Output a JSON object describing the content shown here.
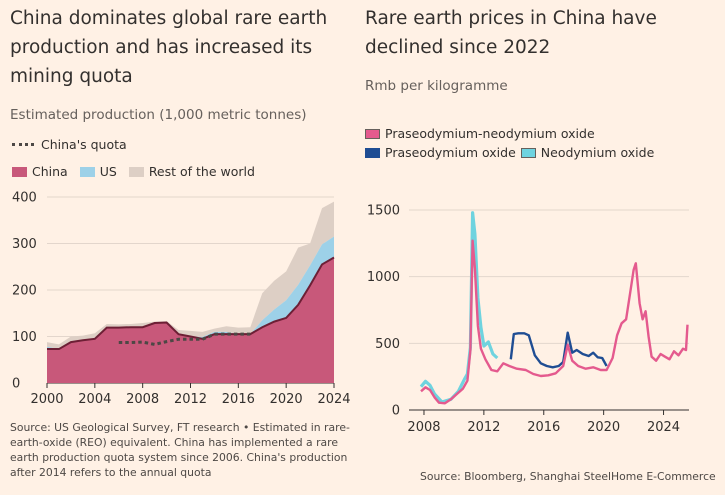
{
  "colors": {
    "background": "#fff1e5",
    "china": "#c8587a",
    "china_line": "#6d1f35",
    "us": "#9dd1e8",
    "rest": "#ddcfc5",
    "quota": "#4d4845",
    "prndo": "#e45a8e",
    "pro": "#1f4d93",
    "ndo": "#6fd3df"
  },
  "left": {
    "title_lines": [
      "China dominates global rare earth",
      "production and has increased its",
      "mining quota"
    ],
    "subtitle": "Estimated production (1,000 metric tonnes)",
    "legend": {
      "quota": "China's quota",
      "china": "China",
      "us": "US",
      "rest": "Rest of the world"
    },
    "source_lines": [
      "Source: US Geological Survey, FT research • Estimated in rare-",
      "earth-oxide (REO) equivalent. China has implemented a rare",
      "earth production quota system since 2006. China's production",
      "after 2014 refers to the annual quota"
    ]
  },
  "right": {
    "title_lines": [
      "Rare earth prices in China have",
      "declined since 2022"
    ],
    "subtitle": "Rmb per kilogramme",
    "legend": {
      "prndo": "Praseodymium-neodymium oxide",
      "pro": "Praseodymium oxide",
      "ndo": "Neodymium oxide"
    },
    "source": "Source: Bloomberg, Shanghai SteelHome E-Commerce"
  },
  "chart_data": [
    {
      "type": "area",
      "stacked": true,
      "title": "Estimated production (1,000 metric tonnes)",
      "xlim": [
        2000,
        2024
      ],
      "ylim": [
        0,
        400
      ],
      "xticks": [
        2000,
        2004,
        2008,
        2012,
        2016,
        2020,
        2024
      ],
      "yticks": [
        0,
        100,
        200,
        300,
        400
      ],
      "x": [
        2000,
        2001,
        2002,
        2003,
        2004,
        2005,
        2006,
        2007,
        2008,
        2009,
        2010,
        2011,
        2012,
        2013,
        2014,
        2015,
        2016,
        2017,
        2018,
        2019,
        2020,
        2021,
        2022,
        2023,
        2024
      ],
      "series": [
        {
          "name": "China",
          "values": [
            73,
            73,
            88,
            92,
            95,
            119,
            119,
            120,
            120,
            129,
            130,
            105,
            100,
            95,
            105,
            105,
            105,
            105,
            120,
            132,
            140,
            168,
            210,
            255,
            270
          ]
        },
        {
          "name": "US",
          "values": [
            5,
            0,
            0,
            0,
            0,
            0,
            0,
            0,
            0,
            0,
            0,
            0,
            0,
            4,
            5,
            5,
            0,
            0,
            15,
            26,
            38,
            43,
            43,
            43,
            45
          ]
        },
        {
          "name": "Rest of the world",
          "values": [
            10,
            10,
            12,
            10,
            12,
            8,
            7,
            7,
            9,
            3,
            3,
            9,
            12,
            11,
            7,
            12,
            14,
            15,
            58,
            62,
            62,
            80,
            47,
            78,
            75
          ]
        }
      ],
      "quota": {
        "name": "China's quota",
        "x": [
          2006,
          2007,
          2008,
          2009,
          2010,
          2011,
          2012,
          2013,
          2014,
          2015,
          2016,
          2017
        ],
        "values": [
          87,
          87,
          88,
          83,
          89,
          94,
          94,
          94,
          105,
          105,
          105,
          105
        ]
      }
    },
    {
      "type": "line",
      "title": "Rmb per kilogramme",
      "xlim": [
        2007.2,
        2025.7
      ],
      "ylim": [
        0,
        1500
      ],
      "xticks": [
        2008,
        2012,
        2016,
        2020,
        2024
      ],
      "yticks": [
        0,
        500,
        1000,
        1500
      ],
      "series": [
        {
          "name": "Neodymium oxide",
          "x": [
            2007.8,
            2008.1,
            2008.4,
            2008.7,
            2009.2,
            2009.8,
            2010.3,
            2010.7,
            2010.9,
            2011.1,
            2011.25,
            2011.4,
            2011.6,
            2011.8,
            2012.0,
            2012.3,
            2012.6,
            2012.9
          ],
          "values": [
            175,
            215,
            185,
            120,
            60,
            80,
            140,
            230,
            270,
            470,
            1480,
            1320,
            840,
            620,
            480,
            510,
            420,
            390
          ]
        },
        {
          "name": "Praseodymium oxide",
          "x": [
            2013.8,
            2014.0,
            2014.3,
            2014.7,
            2015.0,
            2015.4,
            2015.8,
            2016.2,
            2016.6,
            2017.0,
            2017.3,
            2017.6,
            2017.9,
            2018.2,
            2018.6,
            2019.0,
            2019.3,
            2019.6,
            2019.9,
            2020.2
          ],
          "values": [
            380,
            570,
            575,
            575,
            560,
            410,
            350,
            330,
            320,
            330,
            360,
            580,
            430,
            450,
            420,
            405,
            430,
            395,
            390,
            330
          ]
        },
        {
          "name": "Praseodymium-neodymium oxide",
          "x": [
            2007.8,
            2008.1,
            2008.4,
            2008.7,
            2009.0,
            2009.4,
            2009.8,
            2010.2,
            2010.6,
            2010.9,
            2011.1,
            2011.25,
            2011.4,
            2011.6,
            2011.8,
            2012.1,
            2012.5,
            2012.9,
            2013.3,
            2013.7,
            2014.2,
            2014.8,
            2015.3,
            2015.8,
            2016.3,
            2016.8,
            2017.3,
            2017.6,
            2017.9,
            2018.3,
            2018.8,
            2019.3,
            2019.8,
            2020.2,
            2020.6,
            2020.9,
            2021.2,
            2021.5,
            2021.8,
            2022.0,
            2022.15,
            2022.4,
            2022.6,
            2022.8,
            2023.0,
            2023.2,
            2023.5,
            2023.8,
            2024.1,
            2024.4,
            2024.7,
            2025.0,
            2025.3,
            2025.5,
            2025.6
          ],
          "values": [
            140,
            170,
            150,
            95,
            55,
            50,
            80,
            120,
            160,
            220,
            450,
            1270,
            1060,
            630,
            460,
            380,
            300,
            290,
            350,
            330,
            310,
            300,
            270,
            255,
            260,
            275,
            330,
            490,
            370,
            330,
            310,
            320,
            300,
            300,
            390,
            560,
            650,
            680,
            900,
            1050,
            1100,
            800,
            680,
            740,
            550,
            400,
            370,
            420,
            400,
            380,
            440,
            410,
            460,
            450,
            640
          ]
        }
      ]
    }
  ]
}
